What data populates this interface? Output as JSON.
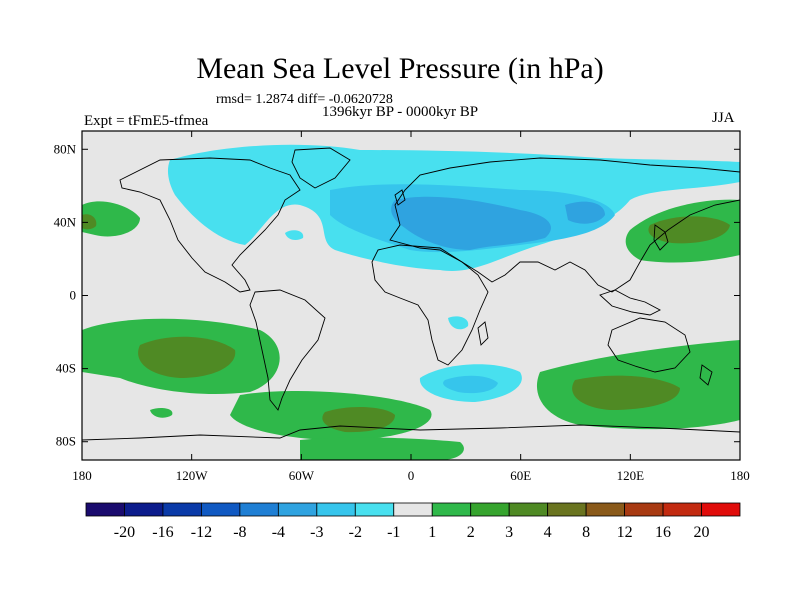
{
  "map": {
    "title": "Mean Sea Level Pressure (in hPa)",
    "stats_line": "rmsd= 1.2874 diff= -0.0620728",
    "period_label": "1396kyr BP - 0000kyr BP",
    "experiment_label": "Expt = tFmE5-tfmea",
    "season_label": "JJA",
    "lat_ticks": [
      "80N",
      "40N",
      "0",
      "40S",
      "80S"
    ],
    "lon_ticks": [
      "180",
      "120W",
      "60W",
      "0",
      "60E",
      "120E",
      "180"
    ],
    "projection": "cylindrical equidistant",
    "lat_range": [
      -90,
      90
    ],
    "lon_range": [
      -180,
      180
    ]
  },
  "colorbar": {
    "labels": [
      "-20",
      "-16",
      "-12",
      "-8",
      "-4",
      "-3",
      "-2",
      "-1",
      "1",
      "2",
      "3",
      "4",
      "8",
      "12",
      "16",
      "20"
    ],
    "colors": [
      "#1a0b6e",
      "#0c1c8c",
      "#0a3aa8",
      "#1059c2",
      "#1f7fd4",
      "#2fa3e0",
      "#36c5ec",
      "#48e0ef",
      "#e6e6e6",
      "#2fb84a",
      "#36a42e",
      "#4f8a24",
      "#6a7420",
      "#8a5a1a",
      "#a83a12",
      "#c22a10",
      "#e00c0a"
    ]
  },
  "anomaly_regions": [
    {
      "name": "north-atlantic-eurasia-low",
      "level": "-1",
      "color": "#48e0ef"
    },
    {
      "name": "eurasia-low-core",
      "level": "-2",
      "color": "#36c5ec"
    },
    {
      "name": "mediterranean-arabia-low",
      "level": "-3",
      "color": "#2fa3e0"
    },
    {
      "name": "south-atlantic-low",
      "level": "-2",
      "color": "#36c5ec"
    },
    {
      "name": "south-pacific-high",
      "level": "3",
      "color": "#4f8a24"
    },
    {
      "name": "north-pacific-high",
      "level": "3",
      "color": "#4f8a24"
    },
    {
      "name": "southern-ocean-high",
      "level": "3",
      "color": "#4f8a24"
    },
    {
      "name": "southern-ocean-high-rim",
      "level": "2",
      "color": "#36a42e"
    }
  ]
}
